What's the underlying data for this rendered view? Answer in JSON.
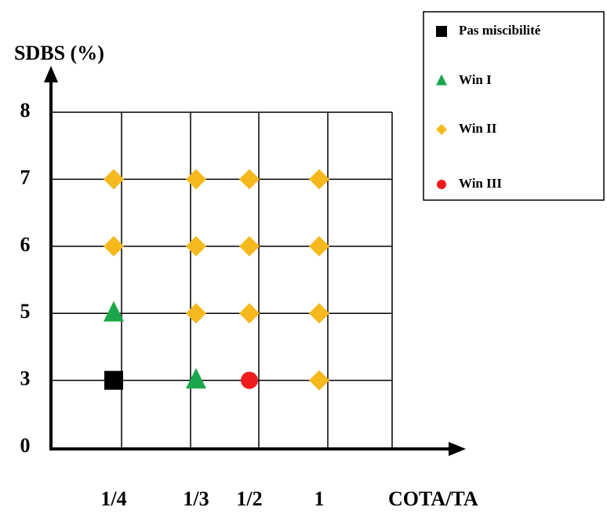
{
  "chart_data": {
    "type": "scatter",
    "y_label": "SDBS (%)",
    "x_label": "COTA/TA",
    "categories": [
      "1/4",
      "1/3",
      "1/2",
      "1"
    ],
    "ylim": [
      0,
      8
    ],
    "yticks": [
      0,
      3,
      5,
      6,
      7,
      8
    ],
    "grid": true,
    "legend": "top-right",
    "series": [
      {
        "name": "Pas miscibilité",
        "color": "#000000",
        "marker": "square",
        "x": [
          "1/4"
        ],
        "values": [
          3
        ]
      },
      {
        "name": "Win I",
        "color": "#1aa64a",
        "marker": "triangle",
        "x": [
          "1/4",
          "1/3"
        ],
        "values": [
          5,
          3
        ]
      },
      {
        "name": "Win II",
        "color": "#f5b91e",
        "marker": "diamond",
        "x": [
          "1/4",
          "1/3",
          "1/2",
          "1",
          "1/4",
          "1/3",
          "1/2",
          "1",
          "1/3",
          "1/2",
          "1",
          "1"
        ],
        "values": [
          7,
          7,
          7,
          7,
          6,
          6,
          6,
          6,
          5,
          5,
          5,
          3
        ]
      },
      {
        "name": "Win III",
        "color": "#ee1c1c",
        "marker": "circle",
        "x": [
          "1/2"
        ],
        "values": [
          3
        ]
      }
    ]
  }
}
